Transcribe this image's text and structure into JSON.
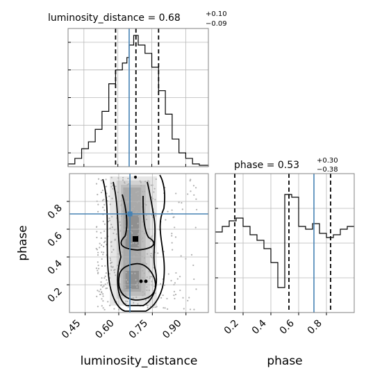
{
  "chart_data": [
    {
      "type": "histogram",
      "panel": "luminosity_distance-1d",
      "title": {
        "prefix": "luminosity_distance = 0.68",
        "sup": "+0.10",
        "sub": "−0.09"
      },
      "xlim": [
        0.38,
        1.0
      ],
      "bin_edges": [
        0.38,
        0.41,
        0.44,
        0.47,
        0.5,
        0.53,
        0.56,
        0.59,
        0.62,
        0.64,
        0.65,
        0.67,
        0.69,
        0.72,
        0.75,
        0.78,
        0.81,
        0.84,
        0.87,
        0.9,
        0.93,
        0.96,
        1.0
      ],
      "counts": [
        2,
        6,
        13,
        18,
        27,
        40,
        60,
        70,
        75,
        79,
        88,
        95,
        88,
        82,
        72,
        55,
        38,
        20,
        10,
        6,
        2,
        1
      ],
      "quantiles": [
        0.59,
        0.68,
        0.78
      ],
      "truth": 0.65,
      "ylim": [
        0,
        100
      ]
    },
    {
      "type": "contour",
      "panel": "luminosity_distance-vs-phase",
      "xlabel": "luminosity_distance",
      "ylabel": "phase",
      "xlim": [
        0.38,
        1.0
      ],
      "ylim": [
        0.0,
        1.0
      ],
      "xticks": [
        "0.45",
        "0.60",
        "0.75",
        "0.90"
      ],
      "xtick_values": [
        0.45,
        0.6,
        0.75,
        0.9
      ],
      "yticks": [
        "0.2",
        "0.4",
        "0.6",
        "0.8"
      ],
      "ytick_values": [
        0.2,
        0.4,
        0.6,
        0.8
      ],
      "truth": [
        0.65,
        0.71
      ]
    },
    {
      "type": "histogram",
      "panel": "phase-1d",
      "title": {
        "prefix": "phase = 0.53",
        "sup": "+0.30",
        "sub": "−0.38"
      },
      "xlabel": "phase",
      "xlim": [
        0.0,
        1.0
      ],
      "bin_edges": [
        0.0,
        0.05,
        0.1,
        0.15,
        0.2,
        0.25,
        0.3,
        0.35,
        0.4,
        0.45,
        0.5,
        0.55,
        0.6,
        0.65,
        0.7,
        0.75,
        0.8,
        0.85,
        0.9,
        0.95,
        1.0
      ],
      "counts": [
        58,
        62,
        66,
        68,
        62,
        56,
        52,
        46,
        36,
        18,
        85,
        83,
        62,
        60,
        64,
        57,
        54,
        56,
        60,
        62
      ],
      "quantiles": [
        0.14,
        0.53,
        0.83
      ],
      "truth": 0.71,
      "xticks": [
        "0.2",
        "0.4",
        "0.6",
        "0.8"
      ],
      "xtick_values": [
        0.2,
        0.4,
        0.6,
        0.8
      ],
      "ylim": [
        0,
        100
      ]
    }
  ]
}
